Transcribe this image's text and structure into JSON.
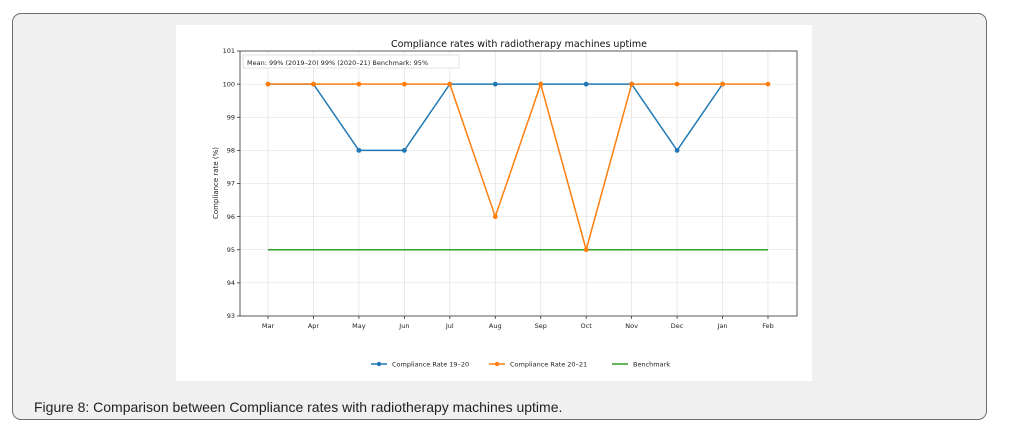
{
  "caption": "Figure 8: Comparison between Compliance rates with radiotherapy machines uptime.",
  "chart_data": {
    "type": "line",
    "title": "Compliance rates with radiotherapy machines uptime",
    "annotation": "Mean: 99% (2019–20)   99% (2020–21)   Benchmark: 95%",
    "xlabel": "",
    "ylabel": "Compliance rate (%)",
    "categories": [
      "Mar",
      "Apr",
      "May",
      "Jun",
      "Jul",
      "Aug",
      "Sep",
      "Oct",
      "Nov",
      "Dec",
      "Jan",
      "Feb"
    ],
    "ylim": [
      93,
      101
    ],
    "yticks": [
      93,
      94,
      95,
      96,
      97,
      98,
      99,
      100,
      101
    ],
    "grid": true,
    "legend_position": "bottom",
    "series": [
      {
        "name": "Compliance Rate 19–20",
        "color": "#1f77b4",
        "marker": true,
        "values": [
          100,
          100,
          98,
          98,
          100,
          100,
          100,
          100,
          100,
          98,
          100,
          null
        ]
      },
      {
        "name": "Compliance Rate 20–21",
        "color": "#ff7f0e",
        "marker": true,
        "values": [
          100,
          100,
          100,
          100,
          100,
          96,
          100,
          95,
          100,
          100,
          100,
          100
        ]
      },
      {
        "name": "Benchmark",
        "color": "#2ca02c",
        "marker": false,
        "values": [
          95,
          95,
          95,
          95,
          95,
          95,
          95,
          95,
          95,
          95,
          95,
          95
        ]
      }
    ]
  }
}
